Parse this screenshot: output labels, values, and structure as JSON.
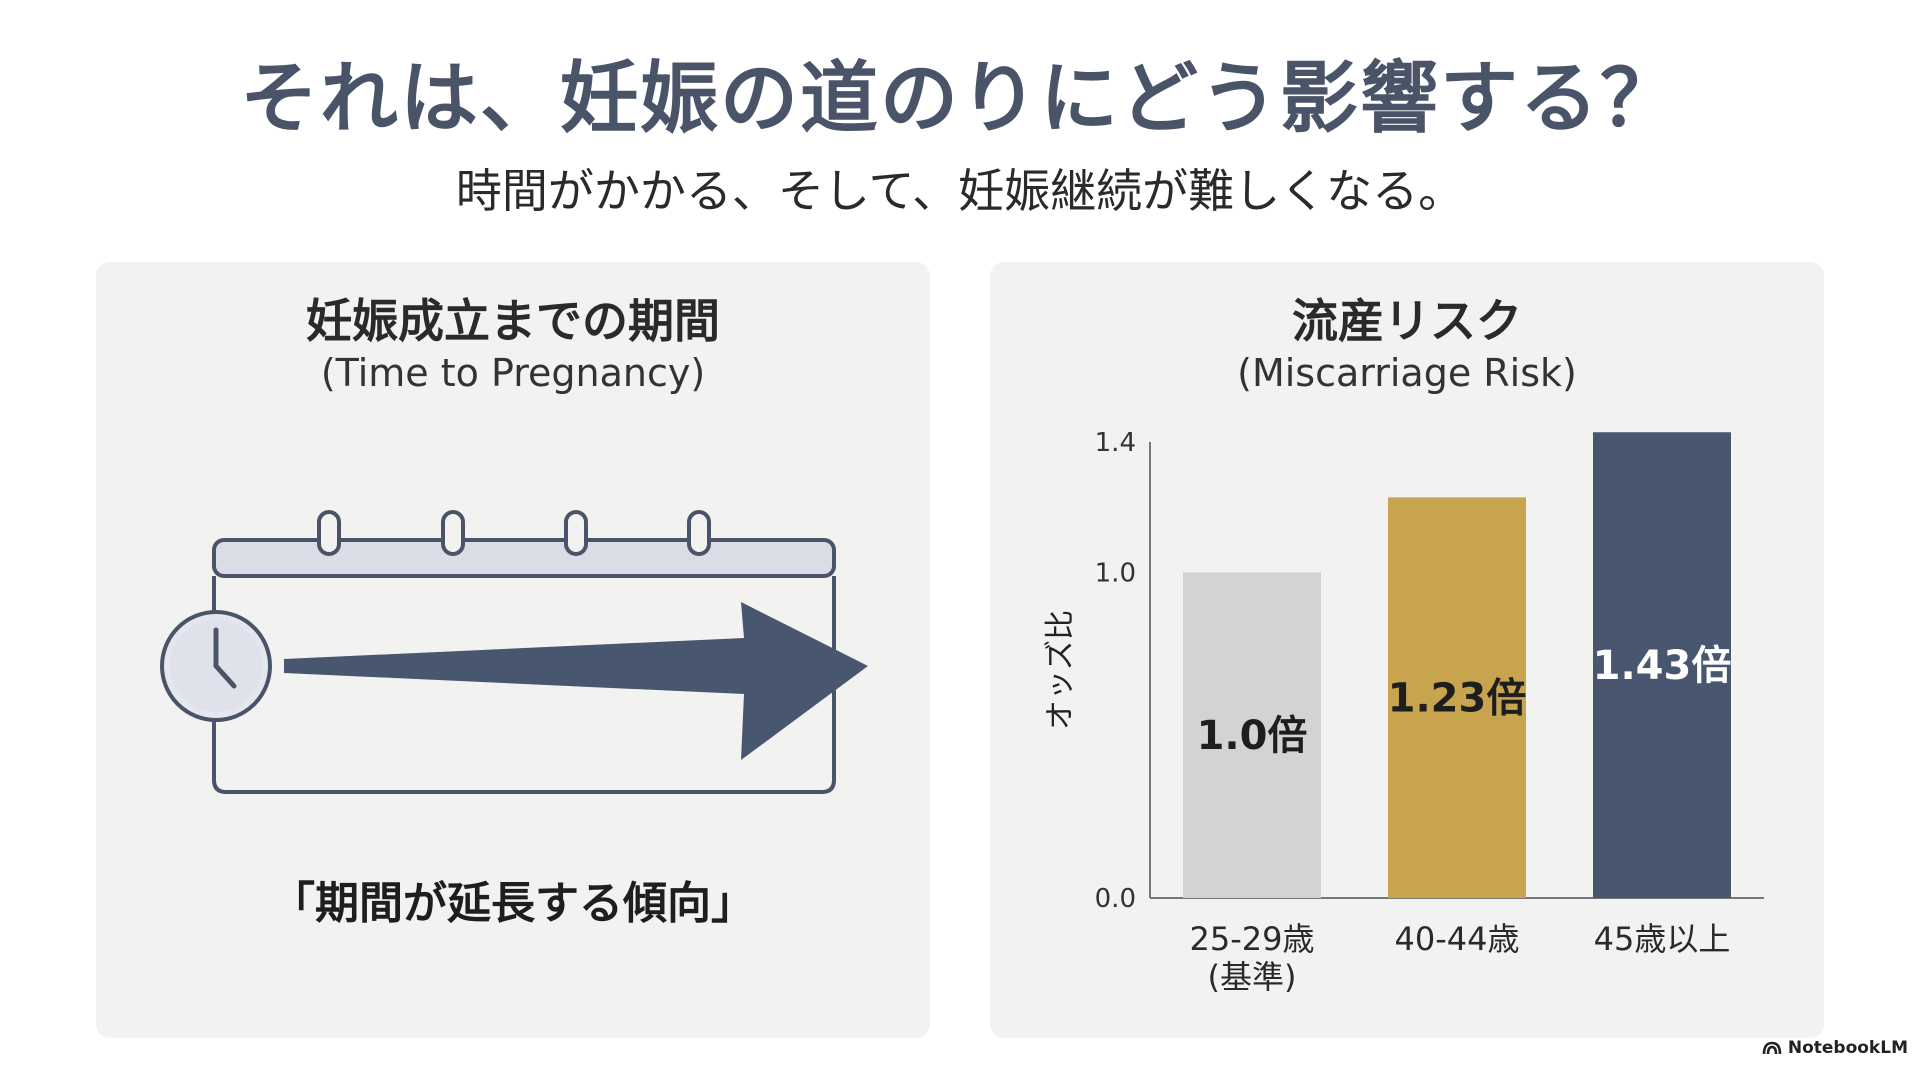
{
  "header": {
    "title": "それは、妊娠の道のりにどう影響する？",
    "subtitle": "時間がかかる、そして、妊娠継続が難しくなる。"
  },
  "left_panel": {
    "heading": "妊娠成立までの期間",
    "subheading": "(Time to Pregnancy)",
    "caption": "「期間が延長する傾向」",
    "illustration_icons": [
      "calendar-icon",
      "clock-icon",
      "arrow-right-icon"
    ]
  },
  "right_panel": {
    "heading": "流産リスク",
    "subheading": "(Miscarriage Risk)"
  },
  "chart_data": {
    "type": "bar",
    "title": "流産リスク",
    "subtitle": "(Miscarriage Risk)",
    "ylabel": "オッズ比",
    "ylim": [
      0.0,
      1.4
    ],
    "yticks": [
      {
        "value": 0.0,
        "label": "0.0"
      },
      {
        "value": 1.0,
        "label": "1.0"
      },
      {
        "value": 1.4,
        "label": "1.4"
      }
    ],
    "categories": [
      {
        "line1": "25-29歳",
        "line2": "(基準)"
      },
      {
        "line1": "40-44歳",
        "line2": ""
      },
      {
        "line1": "45歳以上",
        "line2": ""
      }
    ],
    "values": [
      1.0,
      1.23,
      1.43
    ],
    "value_labels": [
      "1.0倍",
      "1.23倍",
      "1.43倍"
    ],
    "colors": [
      "#d3d3d3",
      "#c9a44e",
      "#485670"
    ],
    "label_colors": [
      "#1e1e1e",
      "#1e1e1e",
      "#ffffff"
    ],
    "grid": false,
    "legend": "none"
  },
  "footer": {
    "brand": "NotebookLM",
    "brand_icon": "notebooklm-logo-icon"
  }
}
